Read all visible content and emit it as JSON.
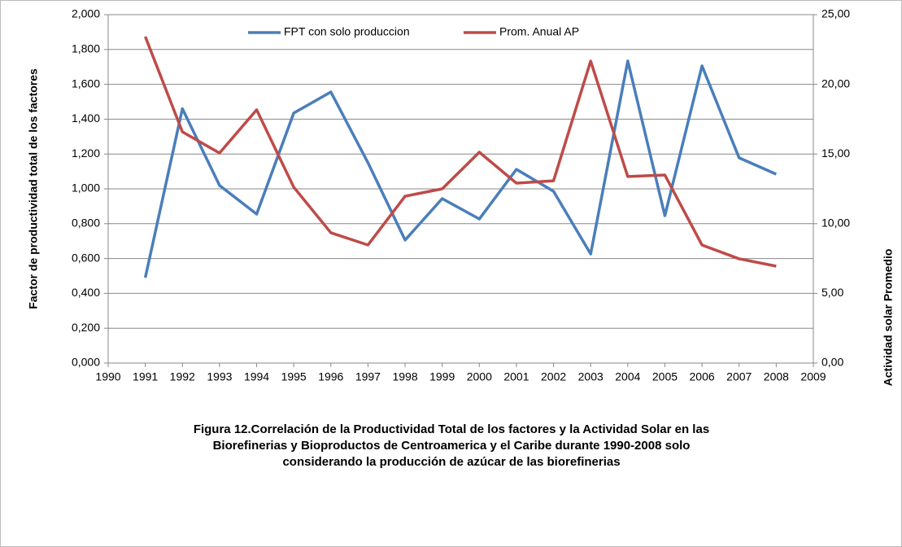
{
  "chart_data": {
    "type": "line",
    "caption": [
      "Figura 12.Correlación de la Productividad Total de los factores y la Actividad Solar en las",
      "Biorefinerias y Bioproductos de Centroamerica y el Caribe durante 1990-2008 solo",
      "considerando la producción de azúcar de  las biorefinerias"
    ],
    "y_label": "Factor de productividad total de los factores",
    "y2_label": "Actividad solar Promedio",
    "x": [
      1991,
      1992,
      1993,
      1994,
      1995,
      1996,
      1997,
      1998,
      1999,
      2000,
      2001,
      2002,
      2003,
      2004,
      2005,
      2006,
      2007,
      2008
    ],
    "series": [
      {
        "name": "FPT con solo produccion",
        "color": "#4a7ebb",
        "values": [
          0.49,
          1.46,
          1.02,
          0.855,
          1.435,
          1.556,
          1.15,
          0.706,
          0.944,
          0.827,
          1.112,
          0.986,
          0.626,
          1.734,
          0.846,
          1.706,
          1.178,
          1.084
        ]
      },
      {
        "name": "Prom. Anual AP",
        "color": "#be4b48",
        "axis": "y2",
        "values": [
          23.42,
          16.59,
          15.07,
          18.17,
          12.62,
          9.35,
          8.47,
          11.97,
          12.5,
          15.13,
          12.91,
          13.08,
          21.67,
          13.38,
          13.49,
          8.47,
          7.48,
          6.95
        ]
      }
    ],
    "xlim": [
      1990,
      2009
    ],
    "xticks": [
      1990,
      1991,
      1992,
      1993,
      1994,
      1995,
      1996,
      1997,
      1998,
      1999,
      2000,
      2001,
      2002,
      2003,
      2004,
      2005,
      2006,
      2007,
      2008,
      2009
    ],
    "ylim": [
      0,
      2
    ],
    "yticks": [
      {
        "value": 0,
        "label": "0,000"
      },
      {
        "value": 0.2,
        "label": "0,200"
      },
      {
        "value": 0.4,
        "label": "0,400"
      },
      {
        "value": 0.6,
        "label": "0,600"
      },
      {
        "value": 0.8,
        "label": "0,800"
      },
      {
        "value": 1,
        "label": "1,000"
      },
      {
        "value": 1.2,
        "label": "1,200"
      },
      {
        "value": 1.4,
        "label": "1,400"
      },
      {
        "value": 1.6,
        "label": "1,600"
      },
      {
        "value": 1.8,
        "label": "1,800"
      },
      {
        "value": 2,
        "label": "2,000"
      }
    ],
    "y2lim": [
      0,
      25
    ],
    "y2ticks": [
      {
        "value": 0,
        "label": "0,00"
      },
      {
        "value": 5,
        "label": "5,00"
      },
      {
        "value": 10,
        "label": "10,00"
      },
      {
        "value": 15,
        "label": "15,00"
      },
      {
        "value": 20,
        "label": "20,00"
      },
      {
        "value": 25,
        "label": "25,00"
      }
    ],
    "grid": true,
    "legend": "top"
  }
}
